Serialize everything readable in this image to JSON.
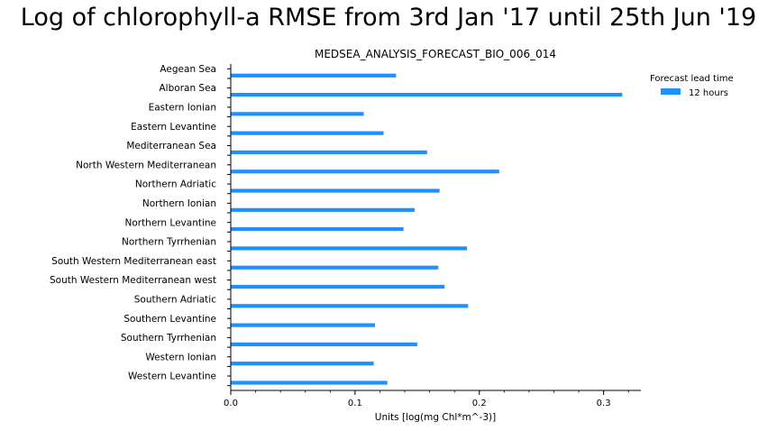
{
  "title": "Log of chlorophyll-a RMSE from 3rd Jan '17 until 25th Jun '19",
  "chart_data": {
    "type": "bar",
    "orientation": "horizontal",
    "subtitle": "MEDSEA_ANALYSIS_FORECAST_BIO_006_014",
    "xlabel": "Units [log(mg Chl*m^-3)]",
    "ylabel": "",
    "xlim": [
      0,
      0.33
    ],
    "xticks": [
      0.0,
      0.1,
      0.2,
      0.3
    ],
    "xtick_labels": [
      "0.0",
      "0.1",
      "0.2",
      "0.3"
    ],
    "grid": false,
    "legend": {
      "title": "Forecast lead time",
      "placement": "top-right"
    },
    "categories": [
      "Aegean Sea",
      "Alboran Sea",
      "Eastern Ionian",
      "Eastern Levantine",
      "Mediterranean Sea",
      "North Western Mediterranean",
      "Northern Adriatic",
      "Northern Ionian",
      "Northern Levantine",
      "Northern Tyrrhenian",
      "South Western Mediterranean east",
      "South Western Mediterranean west",
      "Southern Adriatic",
      "Southern Levantine",
      "Southern Tyrrhenian",
      "Western Ionian",
      "Western Levantine"
    ],
    "series": [
      {
        "name": "12 hours",
        "color": "#1e90ff",
        "values": [
          0.133,
          0.315,
          0.107,
          0.123,
          0.158,
          0.216,
          0.168,
          0.148,
          0.139,
          0.19,
          0.167,
          0.172,
          0.191,
          0.116,
          0.15,
          0.115,
          0.126
        ]
      }
    ]
  }
}
